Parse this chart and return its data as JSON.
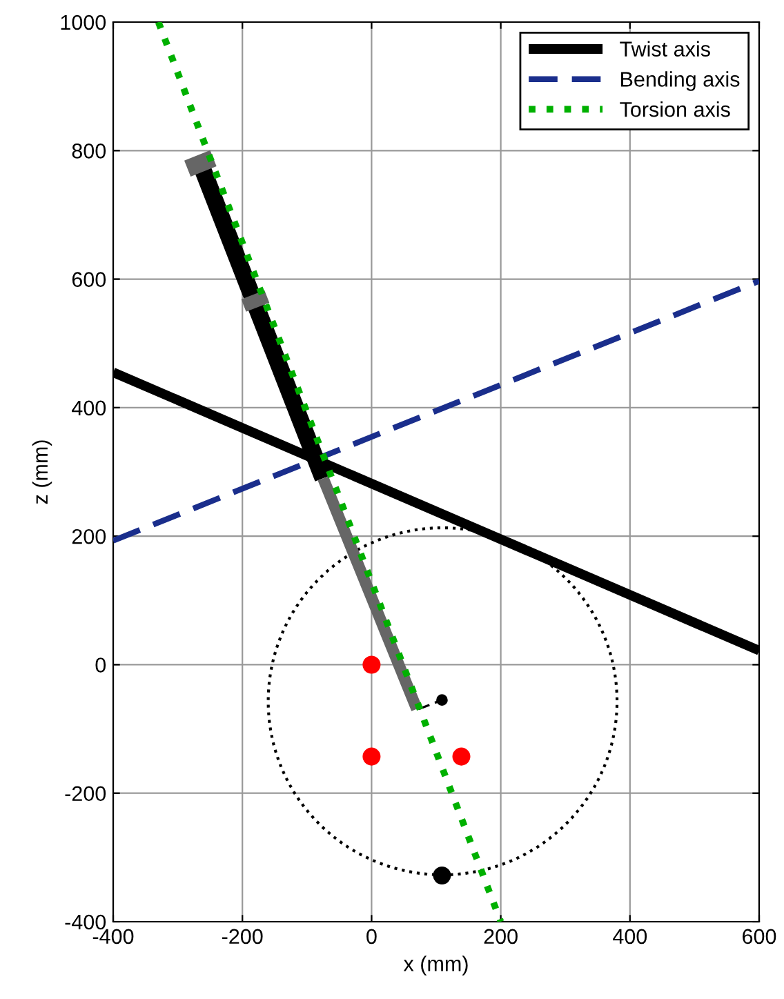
{
  "chart_data": {
    "type": "line",
    "xlabel": "x (mm)",
    "ylabel": "z (mm)",
    "xlim": [
      -400,
      600
    ],
    "ylim": [
      -400,
      1000
    ],
    "xticks": [
      -400,
      -200,
      0,
      200,
      400,
      600
    ],
    "yticks": [
      -400,
      -200,
      0,
      200,
      400,
      600,
      800,
      1000
    ],
    "grid": true,
    "legend": "top right",
    "series": [
      {
        "name": "Twist axis",
        "color": "#000000",
        "line_style": "solid",
        "x": [
          -400,
          600
        ],
        "values": [
          455,
          22
        ]
      },
      {
        "name": "Bending axis",
        "color": "#1a2e8c",
        "line_style": "dashed",
        "x": [
          -400,
          600
        ],
        "values": [
          193,
          597
        ]
      },
      {
        "color": "#000000",
        "line_style": "solid",
        "x": [
          -265,
          -75
        ],
        "values": [
          780,
          290
        ]
      },
      {
        "color": "#666666",
        "line_style": "solid",
        "x": [
          -75,
          70
        ],
        "values": [
          290,
          -69
        ]
      },
      {
        "color": "#666666",
        "line_style": "solid",
        "x": [
          -285,
          -245
        ],
        "values": [
          772,
          788
        ]
      },
      {
        "color": "#666666",
        "line_style": "solid",
        "x": [
          -198,
          -162
        ],
        "values": [
          559,
          573
        ]
      },
      {
        "name": "Torsion axis",
        "color": "#00b000",
        "line_style": "dotted",
        "x": [
          -330,
          200
        ],
        "values": [
          1000,
          -400
        ]
      },
      {
        "color": "#000000",
        "line_style": "dashed",
        "marker": "circle",
        "x": [
          73,
          109
        ],
        "values": [
          -69,
          -55
        ]
      },
      {
        "type": "scatter",
        "color": "#ff0000",
        "marker": "circle",
        "x": [
          0,
          0,
          139
        ],
        "values": [
          0,
          -143,
          -143
        ]
      },
      {
        "type": "scatter",
        "color": "#000000",
        "marker": "circle",
        "x": [
          109
        ],
        "values": [
          -328
        ]
      }
    ]
  }
}
